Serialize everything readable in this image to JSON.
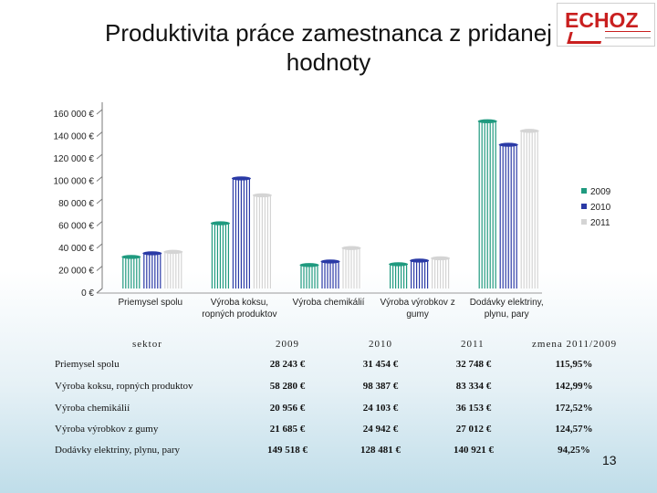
{
  "title": "Produktivita práce zamestnanca z pridanej hodnoty",
  "logo": {
    "text": "ECHOZ"
  },
  "page_number": "13",
  "colors": {
    "s2009": "#1f9a7f",
    "s2010": "#2a3aa6",
    "s2011": "#d4d4d4"
  },
  "chart_data": {
    "type": "bar",
    "title": "Produktivita práce zamestnanca z pridanej hodnoty",
    "categories": [
      "Priemysel spolu",
      "Výroba koksu, ropných produktov",
      "Výroba chemikálií",
      "Výroba výrobkov z gumy",
      "Dodávky elektriny, plynu, pary"
    ],
    "category_lines": [
      [
        "Priemysel spolu"
      ],
      [
        "Výroba koksu,",
        "ropných produktov"
      ],
      [
        "Výroba chemikálií"
      ],
      [
        "Výroba výrobkov z",
        "gumy"
      ],
      [
        "Dodávky elektriny,",
        "plynu, pary"
      ]
    ],
    "series": [
      {
        "name": "2009",
        "values": [
          28243,
          58280,
          20956,
          21685,
          149518
        ]
      },
      {
        "name": "2010",
        "values": [
          31454,
          98387,
          24103,
          24942,
          128481
        ]
      },
      {
        "name": "2011",
        "values": [
          32748,
          83334,
          36153,
          27012,
          140921
        ]
      }
    ],
    "ylim": [
      0,
      160000
    ],
    "yticks": [
      "0 €",
      "20 000 €",
      "40 000 €",
      "60 000 €",
      "80 000 €",
      "100 000 €",
      "120 000 €",
      "140 000 €",
      "160 000 €"
    ],
    "legend_position": "right",
    "xlabel": "",
    "ylabel": "",
    "grid": false
  },
  "table": {
    "headers": [
      "sektor",
      "2009",
      "2010",
      "2011",
      "zmena 2011/2009"
    ],
    "rows": [
      {
        "label": "Priemysel spolu",
        "v2009": "28 243 €",
        "v2010": "31 454 €",
        "v2011": "32 748 €",
        "change": "115,95%"
      },
      {
        "label": "Výroba koksu, ropných produktov",
        "v2009": "58 280 €",
        "v2010": "98 387 €",
        "v2011": "83 334 €",
        "change": "142,99%"
      },
      {
        "label": "Výroba chemikálií",
        "v2009": "20 956 €",
        "v2010": "24 103 €",
        "v2011": "36 153 €",
        "change": "172,52%"
      },
      {
        "label": "Výroba výrobkov z gumy",
        "v2009": "21 685 €",
        "v2010": "24 942 €",
        "v2011": "27 012 €",
        "change": "124,57%"
      },
      {
        "label": "Dodávky elektriny, plynu, pary",
        "v2009": "149 518 €",
        "v2010": "128 481 €",
        "v2011": "140 921 €",
        "change": "94,25%"
      }
    ]
  }
}
